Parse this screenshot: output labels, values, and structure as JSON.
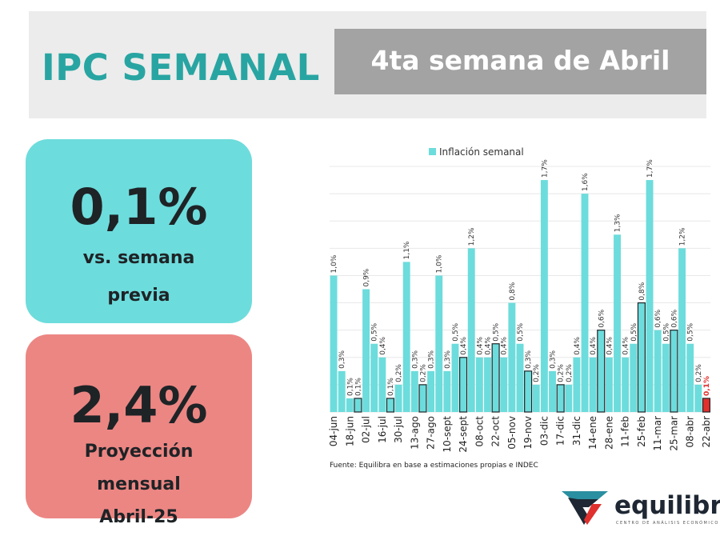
{
  "header": {
    "title": "IPC SEMANAL",
    "week": "4ta semana de Abril"
  },
  "card_previous": {
    "value": "0,1%",
    "line1": "vs. semana",
    "line2": "previa"
  },
  "card_projection": {
    "value": "2,4%",
    "line1": "Proyección",
    "line2": "mensual",
    "line3": "Abril-25"
  },
  "colors": {
    "teal": "#6ddcdc",
    "highlight": "#e0312e",
    "title": "#28a5a2"
  },
  "chart_data": {
    "type": "bar",
    "legend": "Inflación semanal",
    "legend_position": "top",
    "ylim": [
      0,
      1.8
    ],
    "grid": true,
    "source": "Fuente: Equilibra en base a estimaciones propias e INDEC",
    "x_labels": [
      "04-jun",
      "18-jun",
      "02-jul",
      "16-jul",
      "30-jul",
      "13-ago",
      "27-ago",
      "10-sept",
      "24-sept",
      "08-oct",
      "22-oct",
      "05-nov",
      "19-nov",
      "03-dic",
      "17-dic",
      "31-dic",
      "14-ene",
      "28-ene",
      "11-feb",
      "25-feb",
      "11-mar",
      "25-mar",
      "08-abr",
      "22-abr"
    ],
    "values": [
      1.0,
      0.3,
      0.1,
      0.1,
      0.9,
      0.5,
      0.4,
      0.1,
      0.2,
      1.1,
      0.3,
      0.2,
      0.3,
      1.0,
      0.3,
      0.5,
      0.4,
      1.2,
      0.4,
      0.4,
      0.5,
      0.4,
      0.8,
      0.5,
      0.3,
      0.2,
      1.7,
      0.3,
      0.2,
      0.2,
      0.4,
      1.6,
      0.4,
      0.6,
      0.4,
      1.3,
      0.4,
      0.5,
      0.8,
      1.7,
      0.6,
      0.5,
      0.6,
      1.2,
      0.5,
      0.2,
      0.1
    ],
    "value_labels": [
      "1,0%",
      "0,3%",
      "0,1%",
      "0,1%",
      "0,9%",
      "0,5%",
      "0,4%",
      "0,1%",
      "0,2%",
      "1,1%",
      "0,3%",
      "0,2%",
      "0,3%",
      "1,0%",
      "0,3%",
      "0,5%",
      "0,4%",
      "1,2%",
      "0,4%",
      "0,4%",
      "0,5%",
      "0,4%",
      "0,8%",
      "0,5%",
      "0,3%",
      "0,2%",
      "1,7%",
      "0,3%",
      "0,2%",
      "0,2%",
      "0,4%",
      "1,6%",
      "0,4%",
      "0,6%",
      "0,4%",
      "1,3%",
      "0,4%",
      "0,5%",
      "0,8%",
      "1,7%",
      "0,6%",
      "0,5%",
      "0,6%",
      "1,2%",
      "0,5%",
      "0,2%",
      "0,1%"
    ],
    "outlined": [
      3,
      7,
      11,
      16,
      20,
      24,
      28,
      33,
      38,
      42
    ],
    "highlighted": [
      46
    ]
  },
  "logo": {
    "name": "equilibra",
    "tagline": "CENTRO DE ANÁLISIS ECONÓMICO"
  }
}
